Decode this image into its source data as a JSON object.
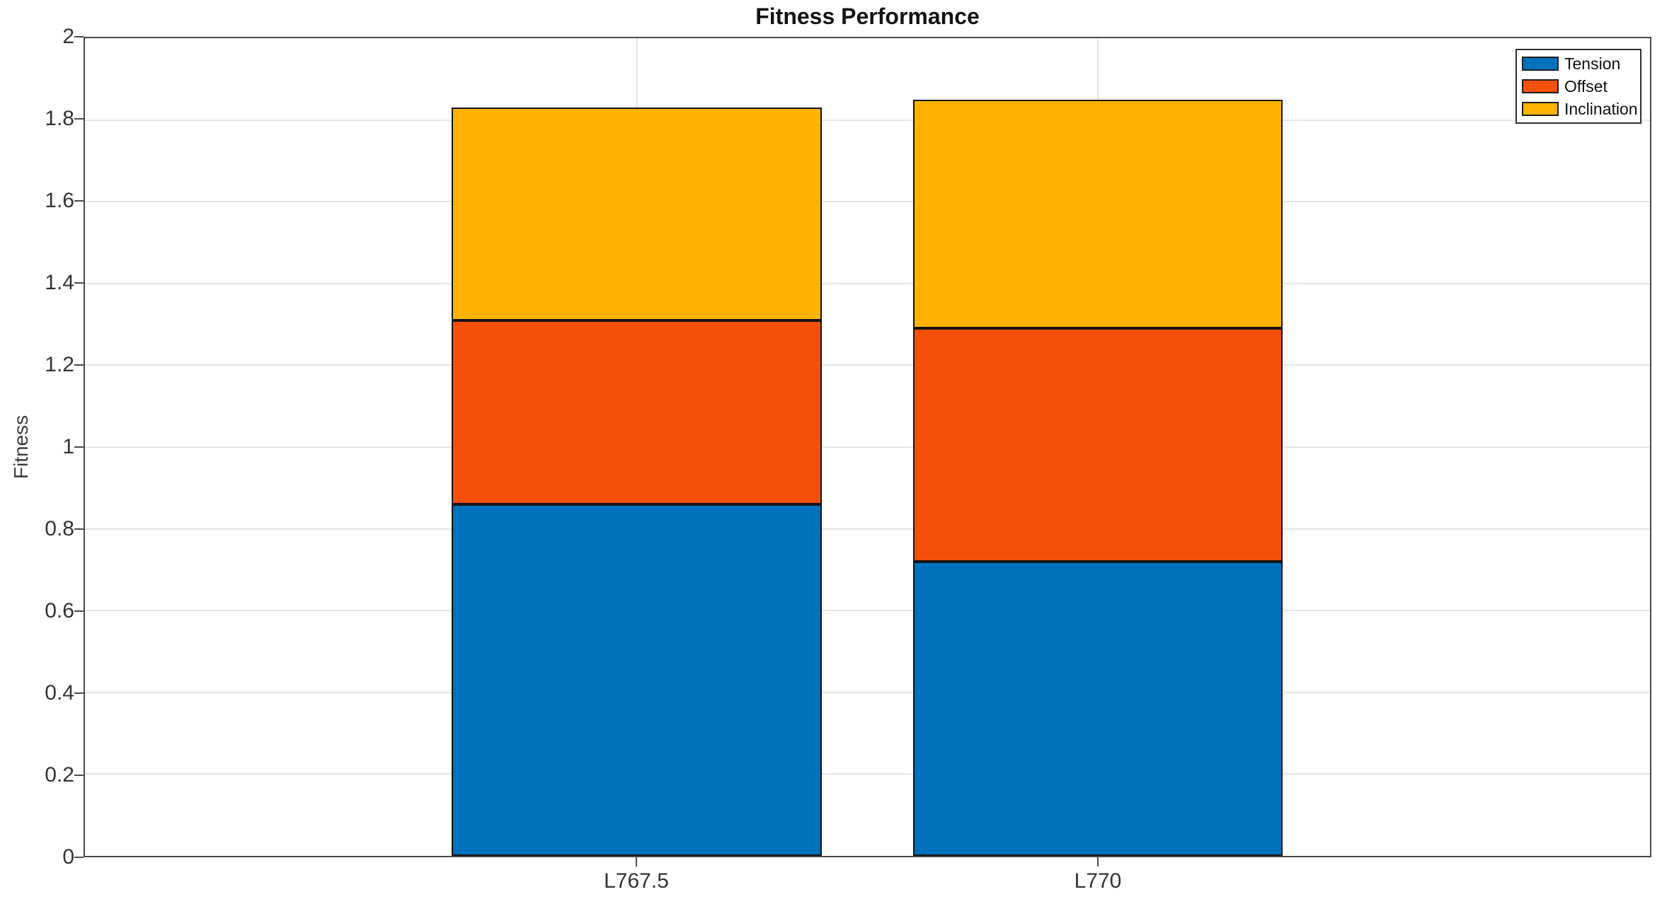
{
  "chart_data": {
    "type": "bar",
    "stacked": true,
    "title": "Fitness Performance",
    "xlabel": "",
    "ylabel": "Fitness",
    "categories": [
      "L767.5",
      "L770"
    ],
    "series": [
      {
        "name": "Tension",
        "color": "#0072BD",
        "values": [
          0.86,
          0.72
        ]
      },
      {
        "name": "Offset",
        "color": "#F4500A",
        "values": [
          0.45,
          0.57
        ]
      },
      {
        "name": "Inclination",
        "color": "#FFB300",
        "values": [
          0.52,
          0.56
        ]
      }
    ],
    "totals": [
      1.83,
      1.85
    ],
    "ylim": [
      0,
      2
    ],
    "yticks": [
      "0",
      "0.2",
      "0.4",
      "0.6",
      "0.8",
      "1",
      "1.2",
      "1.4",
      "1.6",
      "1.8",
      "2"
    ],
    "grid": true,
    "legend_position": "top-right",
    "bar_edge_color": "#141414",
    "axis_color": "#4a4a4a",
    "grid_color": "#e4e4e4",
    "background_color": "#ffffff"
  }
}
